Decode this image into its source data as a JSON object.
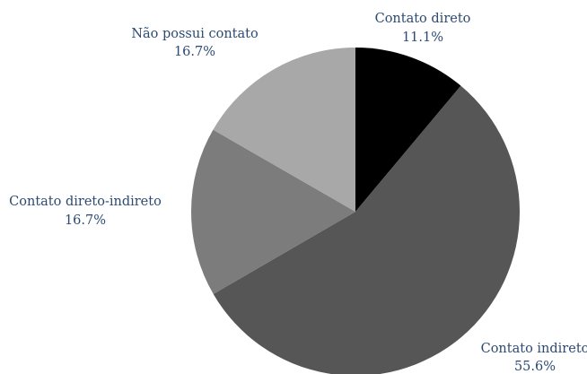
{
  "chart_data": {
    "type": "pie",
    "title": "",
    "start_angle_deg": 0,
    "direction": "clockwise",
    "slices": [
      {
        "label": "Contato direto",
        "value": 11.1,
        "value_label": "11.1%",
        "color": "#000000"
      },
      {
        "label": "Contato indireto",
        "value": 55.6,
        "value_label": "55.6%",
        "color": "#565656"
      },
      {
        "label": "Contato direto-indireto",
        "value": 16.7,
        "value_label": "16.7%",
        "color": "#7c7c7c"
      },
      {
        "label": "Não possui contato",
        "value": 16.7,
        "value_label": "16.7%",
        "color": "#a8a8a8"
      }
    ]
  }
}
